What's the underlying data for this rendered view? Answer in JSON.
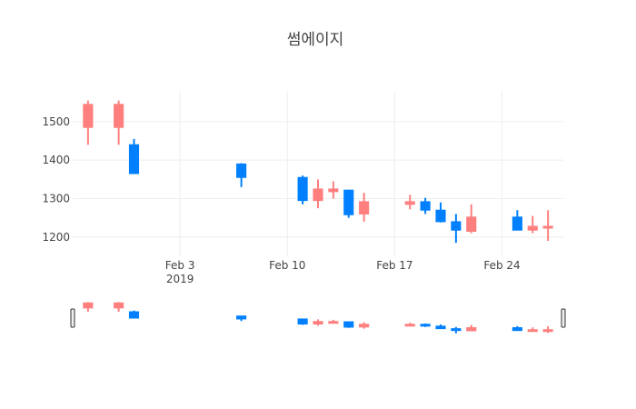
{
  "chart_data": {
    "type": "candlestick",
    "title": "썸에이지",
    "xlabel": "",
    "ylabel": "",
    "ylim": [
      1150,
      1580
    ],
    "xlim": [
      "2019-01-27",
      "2019-02-28"
    ],
    "y_ticks": [
      1200,
      1300,
      1400,
      1500
    ],
    "x_ticks": [
      {
        "date": "2019-02-03",
        "label": "Feb 3",
        "sublabel": "2019"
      },
      {
        "date": "2019-02-10",
        "label": "Feb 10",
        "sublabel": ""
      },
      {
        "date": "2019-02-17",
        "label": "Feb 17",
        "sublabel": ""
      },
      {
        "date": "2019-02-24",
        "label": "Feb 24",
        "sublabel": ""
      }
    ],
    "grid": true,
    "legend": false,
    "rangeslider": true,
    "colors": {
      "increasing": "#ff7f7f",
      "decreasing": "#0080ff"
    },
    "candles": [
      {
        "date": "2019-01-28",
        "open": 1485,
        "high": 1555,
        "low": 1440,
        "close": 1545
      },
      {
        "date": "2019-01-30",
        "open": 1485,
        "high": 1555,
        "low": 1440,
        "close": 1545
      },
      {
        "date": "2019-01-31",
        "open": 1440,
        "high": 1455,
        "low": 1365,
        "close": 1365
      },
      {
        "date": "2019-02-07",
        "open": 1390,
        "high": 1392,
        "low": 1330,
        "close": 1355
      },
      {
        "date": "2019-02-11",
        "open": 1355,
        "high": 1360,
        "low": 1285,
        "close": 1295
      },
      {
        "date": "2019-02-12",
        "open": 1295,
        "high": 1350,
        "low": 1275,
        "close": 1325
      },
      {
        "date": "2019-02-13",
        "open": 1318,
        "high": 1345,
        "low": 1300,
        "close": 1325
      },
      {
        "date": "2019-02-14",
        "open": 1322,
        "high": 1323,
        "low": 1250,
        "close": 1258
      },
      {
        "date": "2019-02-15",
        "open": 1260,
        "high": 1315,
        "low": 1240,
        "close": 1292
      },
      {
        "date": "2019-02-18",
        "open": 1285,
        "high": 1310,
        "low": 1272,
        "close": 1292
      },
      {
        "date": "2019-02-19",
        "open": 1292,
        "high": 1302,
        "low": 1260,
        "close": 1270
      },
      {
        "date": "2019-02-20",
        "open": 1270,
        "high": 1290,
        "low": 1238,
        "close": 1240
      },
      {
        "date": "2019-02-21",
        "open": 1240,
        "high": 1260,
        "low": 1185,
        "close": 1218
      },
      {
        "date": "2019-02-22",
        "open": 1215,
        "high": 1285,
        "low": 1210,
        "close": 1252
      },
      {
        "date": "2019-02-25",
        "open": 1252,
        "high": 1270,
        "low": 1218,
        "close": 1218
      },
      {
        "date": "2019-02-26",
        "open": 1218,
        "high": 1255,
        "low": 1210,
        "close": 1228
      },
      {
        "date": "2019-02-27",
        "open": 1225,
        "high": 1270,
        "low": 1190,
        "close": 1228
      }
    ]
  }
}
